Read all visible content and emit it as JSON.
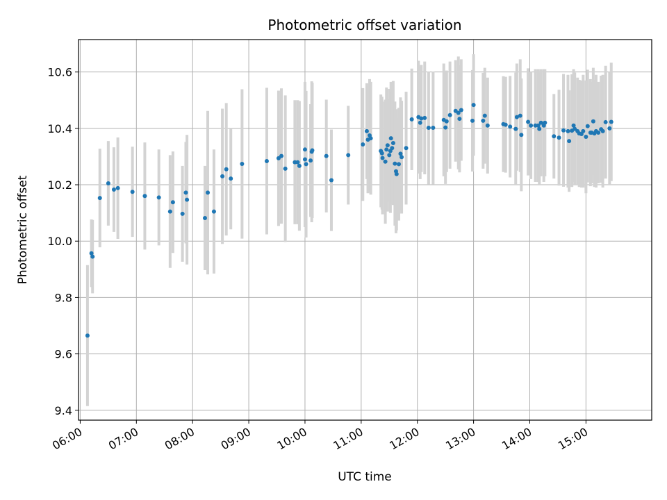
{
  "chart_data": {
    "type": "scatter",
    "title": "Photometric offset variation",
    "xlabel": "UTC time",
    "ylabel": "Photometric offset",
    "x_unit": "hours UTC",
    "xlim": [
      5.97,
      16.17
    ],
    "ylim": [
      9.365,
      10.715
    ],
    "x_ticks": [
      {
        "value": 6,
        "label": "06:00"
      },
      {
        "value": 7,
        "label": "07:00"
      },
      {
        "value": 8,
        "label": "08:00"
      },
      {
        "value": 9,
        "label": "09:00"
      },
      {
        "value": 10,
        "label": "10:00"
      },
      {
        "value": 11,
        "label": "11:00"
      },
      {
        "value": 12,
        "label": "12:00"
      },
      {
        "value": 13,
        "label": "13:00"
      },
      {
        "value": 14,
        "label": "14:00"
      },
      {
        "value": 15,
        "label": "15:00"
      }
    ],
    "y_ticks": [
      {
        "value": 9.4,
        "label": "9.4"
      },
      {
        "value": 9.6,
        "label": "9.6"
      },
      {
        "value": 9.8,
        "label": "9.8"
      },
      {
        "value": 10.0,
        "label": "10.0"
      },
      {
        "value": 10.2,
        "label": "10.2"
      },
      {
        "value": 10.4,
        "label": "10.4"
      },
      {
        "value": 10.6,
        "label": "10.6"
      }
    ],
    "grid": true,
    "colors": {
      "points": "#1f77b4",
      "errorbars": "#d3d3d3",
      "grid": "#b0b0b0"
    },
    "points": [
      [
        6.13,
        9.665,
        0.25
      ],
      [
        6.2,
        9.957,
        0.12
      ],
      [
        6.22,
        9.945,
        0.13
      ],
      [
        6.35,
        10.153,
        0.175
      ],
      [
        6.5,
        10.205,
        0.15
      ],
      [
        6.6,
        10.183,
        0.15
      ],
      [
        6.67,
        10.188,
        0.18
      ],
      [
        6.93,
        10.175,
        0.16
      ],
      [
        7.15,
        10.16,
        0.19
      ],
      [
        7.4,
        10.155,
        0.17
      ],
      [
        7.6,
        10.105,
        0.2
      ],
      [
        7.65,
        10.138,
        0.18
      ],
      [
        7.82,
        10.097,
        0.17
      ],
      [
        7.88,
        10.172,
        0.18
      ],
      [
        7.9,
        10.147,
        0.23
      ],
      [
        8.22,
        10.082,
        0.185
      ],
      [
        8.27,
        10.172,
        0.29
      ],
      [
        8.38,
        10.105,
        0.22
      ],
      [
        8.53,
        10.23,
        0.24
      ],
      [
        8.6,
        10.255,
        0.235
      ],
      [
        8.68,
        10.222,
        0.18
      ],
      [
        8.88,
        10.274,
        0.265
      ],
      [
        9.32,
        10.284,
        0.26
      ],
      [
        9.53,
        10.294,
        0.24
      ],
      [
        9.58,
        10.302,
        0.24
      ],
      [
        9.65,
        10.257,
        0.26
      ],
      [
        9.82,
        10.28,
        0.22
      ],
      [
        9.87,
        10.28,
        0.22
      ],
      [
        9.9,
        10.267,
        0.23
      ],
      [
        10.0,
        10.29,
        0.24
      ],
      [
        10.0,
        10.325,
        0.24
      ],
      [
        10.02,
        10.273,
        0.26
      ],
      [
        10.1,
        10.286,
        0.2
      ],
      [
        10.12,
        10.317,
        0.25
      ],
      [
        10.13,
        10.322,
        0.24
      ],
      [
        10.38,
        10.302,
        0.2
      ],
      [
        10.47,
        10.216,
        0.18
      ],
      [
        10.77,
        10.305,
        0.175
      ],
      [
        11.03,
        10.343,
        0.2
      ],
      [
        11.1,
        10.39,
        0.17
      ],
      [
        11.12,
        10.36,
        0.19
      ],
      [
        11.15,
        10.375,
        0.2
      ],
      [
        11.17,
        10.365,
        0.2
      ],
      [
        11.35,
        10.32,
        0.2
      ],
      [
        11.37,
        10.312,
        0.2
      ],
      [
        11.38,
        10.295,
        0.2
      ],
      [
        11.43,
        10.282,
        0.22
      ],
      [
        11.45,
        10.325,
        0.22
      ],
      [
        11.47,
        10.34,
        0.2
      ],
      [
        11.5,
        10.305,
        0.2
      ],
      [
        11.52,
        10.32,
        0.22
      ],
      [
        11.53,
        10.365,
        0.2
      ],
      [
        11.55,
        10.33,
        0.2
      ],
      [
        11.57,
        10.348,
        0.22
      ],
      [
        11.6,
        10.275,
        0.22
      ],
      [
        11.62,
        10.248,
        0.22
      ],
      [
        11.63,
        10.238,
        0.2
      ],
      [
        11.67,
        10.273,
        0.2
      ],
      [
        11.7,
        10.31,
        0.2
      ],
      [
        11.72,
        10.298,
        0.2
      ],
      [
        11.8,
        10.33,
        0.2
      ],
      [
        11.9,
        10.432,
        0.18
      ],
      [
        12.02,
        10.44,
        0.2
      ],
      [
        12.05,
        10.42,
        0.2
      ],
      [
        12.07,
        10.435,
        0.19
      ],
      [
        12.13,
        10.437,
        0.2
      ],
      [
        12.2,
        10.402,
        0.2
      ],
      [
        12.28,
        10.402,
        0.2
      ],
      [
        12.47,
        10.43,
        0.2
      ],
      [
        12.5,
        10.403,
        0.2
      ],
      [
        12.52,
        10.425,
        0.18
      ],
      [
        12.58,
        10.447,
        0.19
      ],
      [
        12.68,
        10.462,
        0.18
      ],
      [
        12.73,
        10.455,
        0.2
      ],
      [
        12.75,
        10.434,
        0.19
      ],
      [
        12.78,
        10.465,
        0.18
      ],
      [
        12.98,
        10.427,
        0.18
      ],
      [
        13.0,
        10.483,
        0.18
      ],
      [
        13.17,
        10.427,
        0.17
      ],
      [
        13.2,
        10.445,
        0.17
      ],
      [
        13.25,
        10.41,
        0.17
      ],
      [
        13.53,
        10.415,
        0.17
      ],
      [
        13.57,
        10.413,
        0.17
      ],
      [
        13.65,
        10.406,
        0.18
      ],
      [
        13.75,
        10.398,
        0.2
      ],
      [
        13.77,
        10.44,
        0.19
      ],
      [
        13.83,
        10.445,
        0.2
      ],
      [
        13.85,
        10.377,
        0.2
      ],
      [
        13.97,
        10.423,
        0.19
      ],
      [
        14.02,
        10.41,
        0.19
      ],
      [
        14.1,
        10.41,
        0.2
      ],
      [
        14.15,
        10.41,
        0.2
      ],
      [
        14.17,
        10.398,
        0.2
      ],
      [
        14.2,
        10.42,
        0.19
      ],
      [
        14.25,
        10.41,
        0.2
      ],
      [
        14.27,
        10.42,
        0.19
      ],
      [
        14.43,
        10.372,
        0.15
      ],
      [
        14.52,
        10.367,
        0.17
      ],
      [
        14.6,
        10.393,
        0.2
      ],
      [
        14.68,
        10.39,
        0.2
      ],
      [
        14.7,
        10.355,
        0.18
      ],
      [
        14.75,
        10.392,
        0.2
      ],
      [
        14.78,
        10.41,
        0.2
      ],
      [
        14.8,
        10.398,
        0.2
      ],
      [
        14.85,
        10.39,
        0.19
      ],
      [
        14.88,
        10.382,
        0.19
      ],
      [
        14.92,
        10.38,
        0.19
      ],
      [
        14.95,
        10.39,
        0.2
      ],
      [
        15.0,
        10.37,
        0.2
      ],
      [
        15.03,
        10.408,
        0.2
      ],
      [
        15.08,
        10.385,
        0.19
      ],
      [
        15.1,
        10.385,
        0.18
      ],
      [
        15.13,
        10.425,
        0.19
      ],
      [
        15.15,
        10.382,
        0.19
      ],
      [
        15.18,
        10.39,
        0.2
      ],
      [
        15.22,
        10.385,
        0.18
      ],
      [
        15.27,
        10.397,
        0.19
      ],
      [
        15.3,
        10.39,
        0.2
      ],
      [
        15.35,
        10.422,
        0.2
      ],
      [
        15.42,
        10.4,
        0.2
      ],
      [
        15.45,
        10.423,
        0.21
      ]
    ]
  }
}
